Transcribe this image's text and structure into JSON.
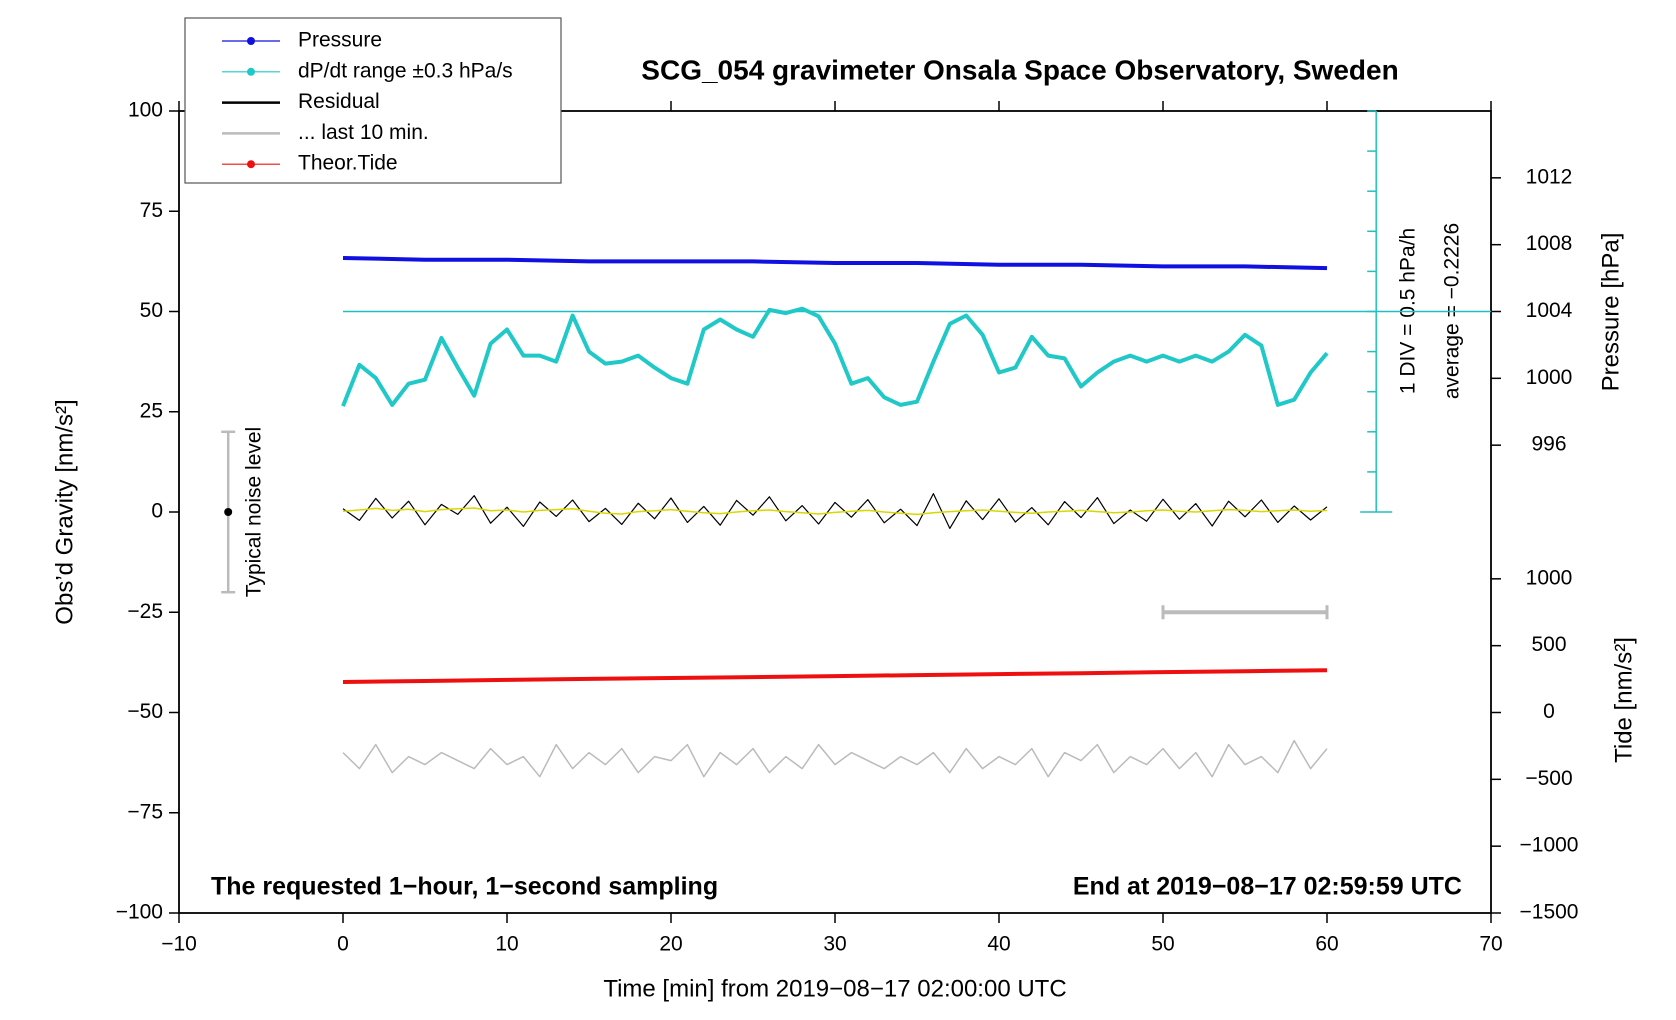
{
  "chart_data": {
    "type": "line",
    "title": "SCG_054 gravimeter Onsala Space Observatory, Sweden",
    "x_label": "Time [min] from 2019−08−17 02:00:00 UTC",
    "y_label": "Obs’d Gravity [nm/s²]",
    "y2_label": "Pressure [hPa]",
    "y3_label": "Tide [nm/s²]",
    "footer_left": "The requested 1−hour, 1−second sampling",
    "footer_right": "End at 2019−08−17 02:59:59 UTC",
    "scale_note": "1 DIV = 0.5 hPa/h",
    "average_note": "average = −0.2226",
    "xlim": [
      -10,
      70
    ],
    "xticks": [
      {
        "value": -10,
        "label": "−10"
      },
      0,
      10,
      20,
      30,
      40,
      50,
      60,
      70
    ],
    "ylim": [
      -100,
      100
    ],
    "yticks": [
      {
        "value": -100,
        "label": "−100"
      },
      {
        "value": -75,
        "label": "−75"
      },
      {
        "value": -50,
        "label": "−50"
      },
      {
        "value": -25,
        "label": "−25"
      },
      0,
      25,
      50,
      75,
      100
    ],
    "y2lim": [
      968,
      1016
    ],
    "y2ticks": [
      996,
      1000,
      1004,
      1008,
      1012
    ],
    "y3lim": [
      -1500,
      4500
    ],
    "y3ticks": [
      {
        "value": -1500,
        "label": "−1500"
      },
      {
        "value": -1000,
        "label": "−1000"
      },
      {
        "value": -500,
        "label": "−500"
      },
      0,
      500,
      1000
    ],
    "reference_line": {
      "value": 50,
      "color": "#20c0c0"
    },
    "dpdt_scale": {
      "x": 63,
      "ticks": [
        0,
        10,
        20,
        30,
        40,
        50,
        60,
        70,
        80,
        90,
        100
      ],
      "color": "#20c0c0"
    },
    "noise_level": {
      "label": "Typical noise level",
      "x": -7,
      "value": 0,
      "error": 20,
      "color": "#bbbbbb"
    },
    "last_window_bar": {
      "x": [
        50,
        60
      ],
      "y": -25,
      "color": "#bbbbbb"
    },
    "series": [
      {
        "name": "Pressure",
        "color": "#1010e0",
        "axis": "y2",
        "legend_dot": true,
        "width": 4,
        "x": [
          0,
          5,
          10,
          15,
          20,
          25,
          30,
          35,
          40,
          45,
          50,
          55,
          60
        ],
        "values": [
          1007.2,
          1007.1,
          1007.1,
          1007.0,
          1007.0,
          1007.0,
          1006.9,
          1006.9,
          1006.8,
          1006.8,
          1006.7,
          1006.7,
          1006.6
        ]
      },
      {
        "name": "dP/dt range ±0.3 hPa/s",
        "color": "#20c8c8",
        "legend_dot": true,
        "width": 4,
        "x": [
          0,
          1,
          2,
          3,
          4,
          5,
          6,
          7,
          8,
          9,
          10,
          11,
          12,
          13,
          14,
          15,
          16,
          17,
          18,
          19,
          20,
          21,
          22,
          23,
          24,
          25,
          26,
          27,
          28,
          29,
          30,
          31,
          32,
          33,
          34,
          35,
          36,
          37,
          38,
          39,
          40,
          41,
          42,
          43,
          44,
          45,
          46,
          47,
          48,
          49,
          50,
          51,
          52,
          53,
          54,
          55,
          56,
          57,
          58,
          59,
          60
        ],
        "values": [
          26.4,
          36.7,
          33.4,
          26.7,
          32,
          33,
          43.4,
          36,
          29,
          42,
          45.5,
          39,
          39,
          37.5,
          49,
          40,
          37,
          37.5,
          39,
          36,
          33.4,
          32,
          45.5,
          48,
          45.5,
          43.7,
          50.4,
          49.6,
          50.7,
          48.8,
          42,
          32,
          33.4,
          28.6,
          26.7,
          27.5,
          37.5,
          46.9,
          49,
          44.2,
          34.8,
          36,
          43.7,
          39,
          38.3,
          31.3,
          34.8,
          37.5,
          39,
          37.5,
          39,
          37.5,
          39,
          37.5,
          40,
          44.2,
          41.5,
          26.7,
          28,
          34.8,
          39.6
        ]
      },
      {
        "name": "Residual",
        "color": "#000000",
        "width": 1.2,
        "x": [
          0,
          1,
          2,
          3,
          4,
          5,
          6,
          7,
          8,
          9,
          10,
          11,
          12,
          13,
          14,
          15,
          16,
          17,
          18,
          19,
          20,
          21,
          22,
          23,
          24,
          25,
          26,
          27,
          28,
          29,
          30,
          31,
          32,
          33,
          34,
          35,
          36,
          37,
          38,
          39,
          40,
          41,
          42,
          43,
          44,
          45,
          46,
          47,
          48,
          49,
          50,
          51,
          52,
          53,
          54,
          55,
          56,
          57,
          58,
          59,
          60
        ],
        "values": [
          0.8,
          -2.1,
          3.4,
          -1.5,
          2.7,
          -3.2,
          1.9,
          -0.6,
          4.1,
          -2.8,
          1.2,
          -3.6,
          2.5,
          -1.1,
          3.0,
          -2.4,
          0.9,
          -3.1,
          2.2,
          -1.7,
          3.5,
          -2.6,
          1.4,
          -3.3,
          2.9,
          -0.8,
          3.8,
          -2.2,
          1.6,
          -3.0,
          2.4,
          -1.3,
          3.1,
          -2.7,
          0.7,
          -3.4,
          4.6,
          -4.1,
          2.8,
          -1.9,
          3.3,
          -2.5,
          1.1,
          -3.2,
          2.6,
          -1.4,
          3.6,
          -2.9,
          0.5,
          -2.3,
          3.2,
          -1.8,
          2.1,
          -3.5,
          2.7,
          -1.2,
          3.0,
          -2.6,
          1.5,
          -2.0,
          1.3
        ]
      },
      {
        "color": "#d8d800",
        "width": 1.5,
        "x": [
          0,
          1,
          2,
          3,
          4,
          5,
          6,
          7,
          8,
          9,
          10,
          11,
          12,
          13,
          14,
          15,
          16,
          17,
          18,
          19,
          20,
          21,
          22,
          23,
          24,
          25,
          26,
          27,
          28,
          29,
          30,
          31,
          32,
          33,
          34,
          35,
          36,
          37,
          38,
          39,
          40,
          41,
          42,
          43,
          44,
          45,
          46,
          47,
          48,
          49,
          50,
          51,
          52,
          53,
          54,
          55,
          56,
          57,
          58,
          59,
          60
        ],
        "values": [
          0.2,
          0.5,
          0.9,
          0.4,
          0.7,
          0.1,
          0.6,
          0.8,
          1.0,
          0.3,
          0.5,
          0.0,
          0.4,
          0.6,
          0.8,
          0.2,
          -0.3,
          -0.5,
          0.1,
          0.3,
          0.6,
          0.2,
          -0.2,
          -0.4,
          0.0,
          0.3,
          0.5,
          0.1,
          -0.2,
          -0.5,
          -0.1,
          0.2,
          0.4,
          0.0,
          -0.3,
          -0.6,
          -0.2,
          0.1,
          0.3,
          0.5,
          0.2,
          -0.1,
          -0.3,
          0.0,
          0.2,
          0.4,
          0.1,
          -0.2,
          0.0,
          0.3,
          0.5,
          0.2,
          0.0,
          0.3,
          0.6,
          0.4,
          0.1,
          0.3,
          0.5,
          0.2,
          0.4
        ]
      },
      {
        "name": "... last 10 min.",
        "color": "#bbbbbb",
        "width": 1.5,
        "x": [
          0,
          1,
          2,
          3,
          4,
          5,
          6,
          7,
          8,
          9,
          10,
          11,
          12,
          13,
          14,
          15,
          16,
          17,
          18,
          19,
          20,
          21,
          22,
          23,
          24,
          25,
          26,
          27,
          28,
          29,
          30,
          31,
          32,
          33,
          34,
          35,
          36,
          37,
          38,
          39,
          40,
          41,
          42,
          43,
          44,
          45,
          46,
          47,
          48,
          49,
          50,
          51,
          52,
          53,
          54,
          55,
          56,
          57,
          58,
          59,
          60
        ],
        "values": [
          -60,
          -64,
          -58,
          -65,
          -61,
          -63,
          -60,
          -62,
          -64,
          -59,
          -63,
          -61,
          -66,
          -58,
          -64,
          -60,
          -63,
          -59,
          -65,
          -61,
          -62,
          -58,
          -66,
          -60,
          -63,
          -59,
          -65,
          -61,
          -64,
          -58,
          -63,
          -60,
          -62,
          -64,
          -61,
          -63,
          -60,
          -65,
          -59,
          -64,
          -61,
          -63,
          -59,
          -66,
          -60,
          -62,
          -58,
          -65,
          -61,
          -63,
          -59,
          -64,
          -60,
          -66,
          -58,
          -63,
          -61,
          -65,
          -57,
          -64,
          -59
        ]
      },
      {
        "name": "Theor.Tide",
        "color": "#ee1010",
        "axis": "y3",
        "legend_dot": true,
        "width": 4,
        "x": [
          0,
          5,
          10,
          15,
          20,
          25,
          30,
          35,
          40,
          45,
          50,
          55,
          60
        ],
        "values": [
          228,
          236,
          244,
          251,
          258,
          265,
          272,
          280,
          287,
          294,
          302,
          309,
          316
        ]
      }
    ]
  }
}
